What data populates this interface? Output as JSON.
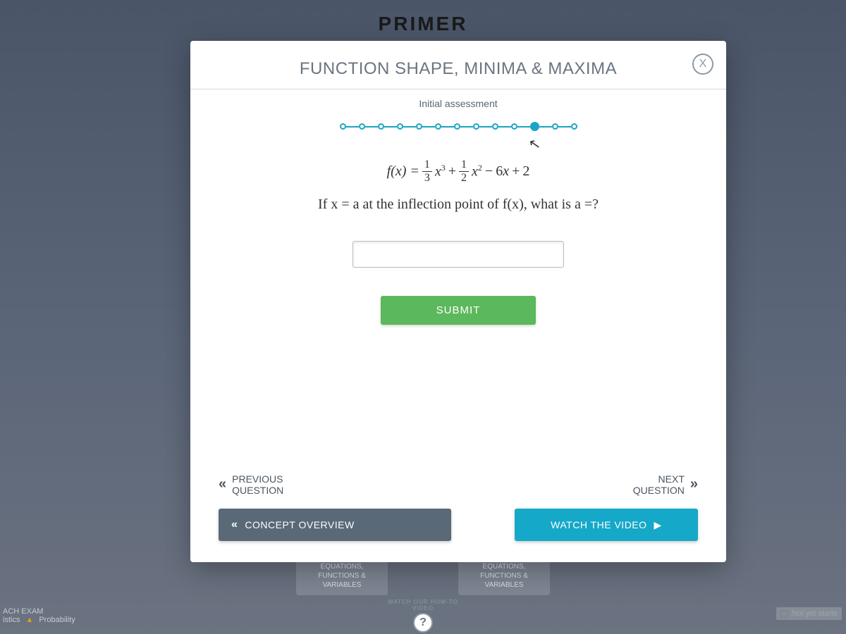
{
  "page": {
    "brand": "PRIMER"
  },
  "modal": {
    "title": "FUNCTION SHAPE, MINIMA & MAXIMA",
    "subtitle": "Initial assessment",
    "close_label": "X"
  },
  "progress": {
    "total_steps": 13,
    "current_step": 11,
    "dot_border_color": "#1aa5c4",
    "dot_fill_color": "#1aa5c4"
  },
  "question": {
    "equation": {
      "lhs": "f(x) =",
      "term1_num": "1",
      "term1_den": "3",
      "term1_var": "x",
      "term1_exp": "3",
      "op1": "+",
      "term2_num": "1",
      "term2_den": "2",
      "term2_var": "x",
      "term2_exp": "2",
      "op2": "−",
      "term3": "6x",
      "op3": "+",
      "term4": "2"
    },
    "prompt": "If x = a at the inflection point of f(x), what is a =?",
    "input_value": "",
    "submit_label": "SUBMIT"
  },
  "nav": {
    "prev_line1": "PREVIOUS",
    "prev_line2": "QUESTION",
    "next_line1": "NEXT",
    "next_line2": "QUESTION"
  },
  "bottom": {
    "concept_label": "CONCEPT OVERVIEW",
    "video_label": "WATCH THE VIDEO"
  },
  "background": {
    "card1_line1": "EQUATIONS,",
    "card1_line2": "FUNCTIONS &",
    "card1_line3": "VARIABLES",
    "card2_line1": "EQUATIONS,",
    "card2_line2": "FUNCTIONS &",
    "card2_line3": "VARIABLES",
    "left_line1": "ACH EXAM",
    "left_line2": "istics",
    "left_line3": "Probability",
    "right_label": "Not yet starte",
    "howto_arc": "WATCH OUR HOW-TO VIDEO",
    "howto_q": "?"
  },
  "colors": {
    "submit_bg": "#5cb85c",
    "concept_bg": "#5a6978",
    "video_bg": "#15a8c8",
    "title_color": "#6a7580"
  }
}
